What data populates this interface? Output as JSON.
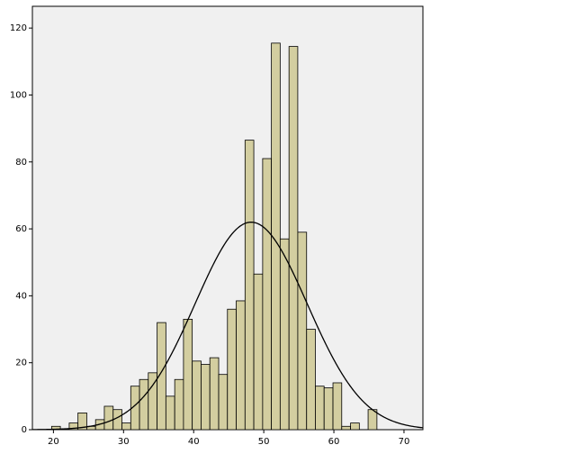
{
  "chart_data": {
    "type": "histogram",
    "bins": [
      19.74,
      20.99,
      22.25,
      23.5,
      24.76,
      26.01,
      27.26,
      28.52,
      29.77,
      31.03,
      32.28,
      33.53,
      34.79,
      36.04,
      37.3,
      38.55,
      39.8,
      41.06,
      42.31,
      43.57,
      44.82,
      46.07,
      47.33,
      48.58,
      49.84,
      51.09,
      52.34,
      53.6,
      54.85,
      56.11,
      57.36,
      58.61,
      59.87,
      61.12,
      62.38,
      63.63,
      64.88,
      66.14
    ],
    "values": [
      1,
      0,
      2,
      5,
      1,
      3,
      7,
      6,
      2,
      13,
      15,
      17,
      32,
      10,
      15,
      33,
      20.5,
      19.5,
      21.5,
      16.5,
      36,
      38.5,
      86.5,
      46.5,
      81,
      115.5,
      57,
      114.5,
      59,
      30,
      13,
      12.5,
      14,
      1,
      2,
      0,
      6
    ],
    "color": "#d3cea0",
    "normal_curve": {
      "mean": 48.2,
      "sd": 8,
      "height": 62
    },
    "xlim": [
      17,
      72.7
    ],
    "ylim": [
      0,
      126.5
    ],
    "xticks": [
      20,
      30,
      40,
      50,
      60,
      70
    ],
    "yticks": [
      0,
      20,
      40,
      60,
      80,
      100,
      120
    ]
  }
}
